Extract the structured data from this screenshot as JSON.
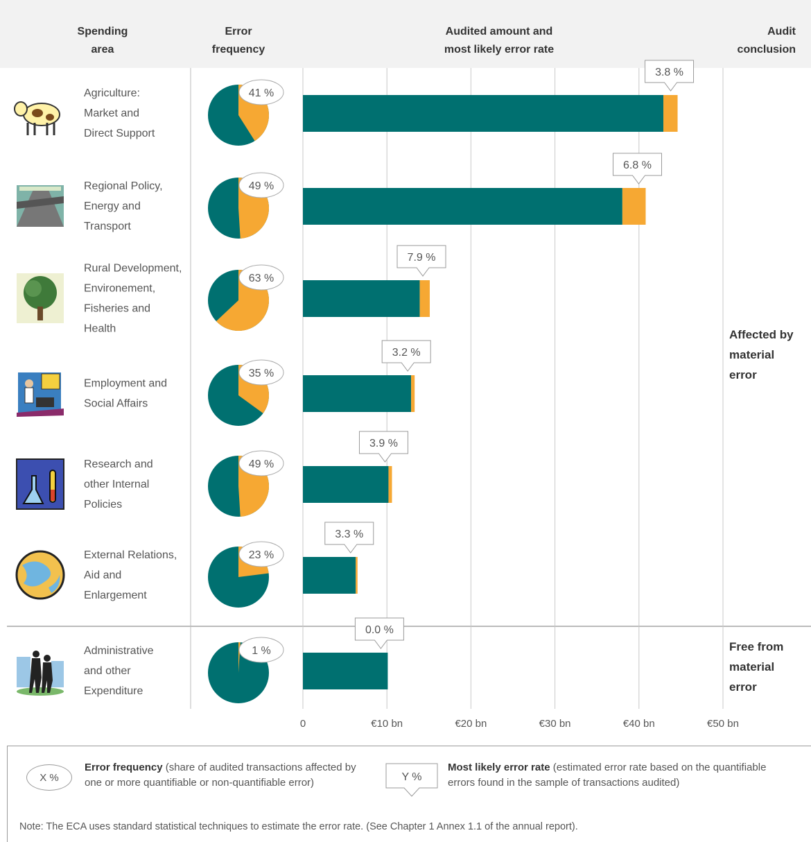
{
  "headers": {
    "spending_area": [
      "Spending",
      "area"
    ],
    "error_frequency": [
      "Error",
      "frequency"
    ],
    "audited": [
      "Audited amount and",
      "most likely error rate"
    ],
    "conclusion": [
      "Audit",
      "conclusion"
    ]
  },
  "chart_data": {
    "type": "bar",
    "categories": [
      "Agriculture: Market and Direct Support",
      "Regional Policy, Energy and Transport",
      "Rural Development, Environement, Fisheries and Health",
      "Employment and Social Affairs",
      "Research and other Internal Policies",
      "External Relations, Aid and Enlargement",
      "Administrative and other Expenditure"
    ],
    "category_lines": [
      [
        "Agriculture:",
        "Market and",
        "Direct Support"
      ],
      [
        "Regional Policy,",
        "Energy and",
        "Transport"
      ],
      [
        "Rural Development,",
        "Environement,",
        "Fisheries and",
        "Health"
      ],
      [
        "Employment and",
        "Social Affairs"
      ],
      [
        "Research and",
        "other Internal",
        "Policies"
      ],
      [
        "External Relations,",
        "Aid and",
        "Enlargement"
      ],
      [
        "Administrative",
        "and other",
        "Expenditure"
      ]
    ],
    "icons": [
      "cow-icon",
      "highway-icon",
      "tree-icon",
      "office-workers-icon",
      "laboratory-icon",
      "globe-icon",
      "business-people-icon"
    ],
    "audited_amount_bn": [
      44.6,
      40.8,
      15.1,
      13.3,
      10.6,
      6.5,
      10.1
    ],
    "most_likely_error_rate_pct": [
      3.8,
      6.8,
      7.9,
      3.2,
      3.9,
      3.3,
      0.0
    ],
    "error_rate_labels": [
      "3.8 %",
      "6.8 %",
      "7.9 %",
      "3.2 %",
      "3.9 %",
      "3.3 %",
      "0.0 %"
    ],
    "error_frequency_pct": [
      41,
      49,
      63,
      35,
      49,
      23,
      1
    ],
    "error_frequency_labels": [
      "41 %",
      "49 %",
      "63 %",
      "35 %",
      "49 %",
      "23 %",
      "1 %"
    ],
    "x_ticks": [
      "0",
      "€10 bn",
      "€20 bn",
      "€30 bn",
      "€40 bn",
      "€50 bn"
    ],
    "xlim": [
      0,
      50
    ],
    "grid": true,
    "audit_conclusions": [
      {
        "lines": [
          "Affected by",
          "material",
          "error"
        ]
      },
      {
        "lines": [
          "Free from",
          "material",
          "error"
        ]
      }
    ],
    "colors": {
      "main": "#007070",
      "error": "#F6A833",
      "grid": "#c8c8c8"
    }
  },
  "legend": {
    "freq_sample": "X %",
    "freq_title": "Error frequency",
    "freq_desc": "(share of audited transactions affected by one or more  quantifiable or non-quantifiable error)",
    "rate_sample": "Y %",
    "rate_title": "Most likely error rate",
    "rate_desc": "(estimated error rate based on the quantifiable errors found in the sample of transactions audited)"
  },
  "note": "Note: The ECA uses standard statistical techniques to estimate the error rate. (See Chapter 1 Annex 1.1 of the annual report)."
}
